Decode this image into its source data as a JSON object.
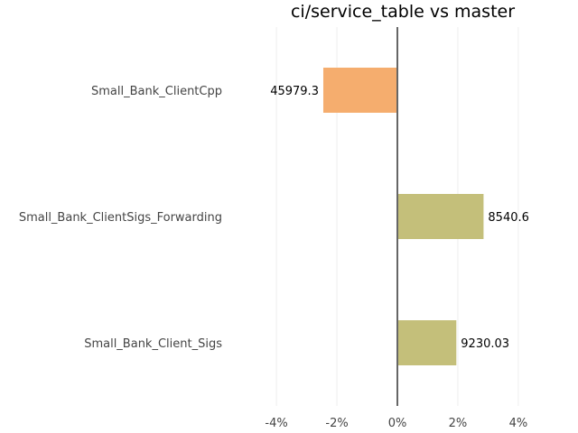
{
  "chart_data": {
    "type": "bar",
    "orientation": "horizontal",
    "title": "ci/service_table vs master",
    "categories": [
      "Small_Bank_ClientCpp",
      "Small_Bank_ClientSigs_Forwarding",
      "Small_Bank_Client_Sigs"
    ],
    "values_percent": [
      -2.45,
      2.85,
      1.95
    ],
    "data_labels": [
      "45979.3",
      "8540.6",
      "9230.03"
    ],
    "bar_colors": [
      "#f5ad6e",
      "#c4bf7a",
      "#c4bf7a"
    ],
    "xlim": [
      -4.6,
      4.6
    ],
    "xticks": [
      -4,
      -2,
      0,
      2,
      4
    ],
    "xtick_labels": [
      "-4%",
      "-2%",
      "0%",
      "2%",
      "4%"
    ],
    "grid": true
  }
}
